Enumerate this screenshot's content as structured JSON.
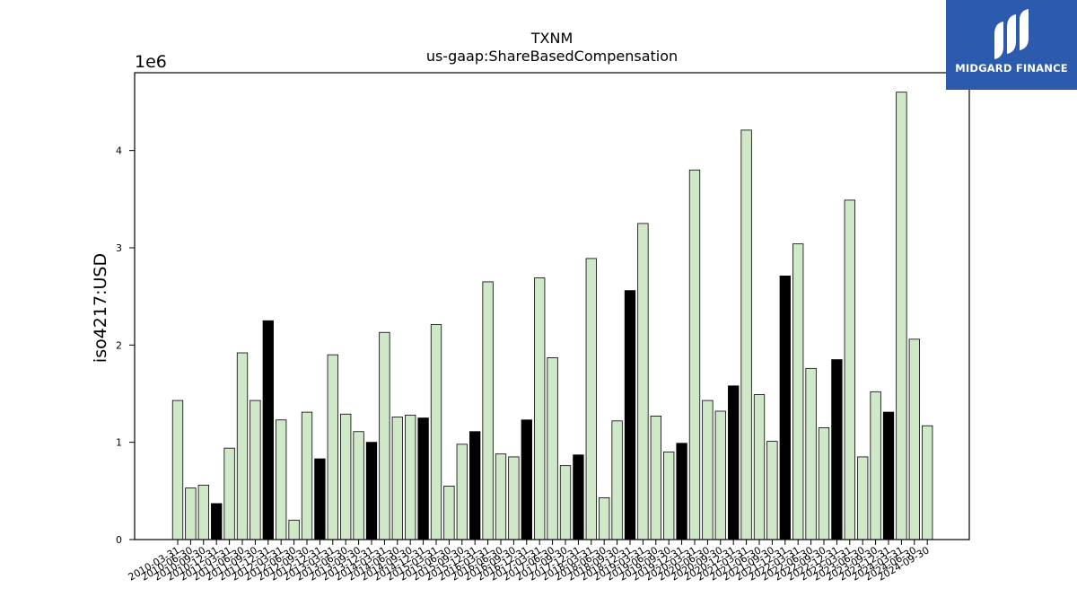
{
  "title": "TXNM",
  "subtitle": "us-gaap:ShareBasedCompensation",
  "ylabel": "iso4217:USD",
  "scale_label": "1e6",
  "logo_text": "MIDGARD FINANCE",
  "colors": {
    "annual": "#000000",
    "quarterly": "#cfe8c8"
  },
  "chart_data": {
    "type": "bar",
    "title": "TXNM",
    "subtitle": "us-gaap:ShareBasedCompensation",
    "xlabel": "",
    "ylabel": "iso4217:USD",
    "ylim": [
      0,
      4800000
    ],
    "yticks": [
      0,
      1000000,
      2000000,
      3000000,
      4000000
    ],
    "ytick_labels": [
      "0",
      "1",
      "2",
      "3",
      "4"
    ],
    "categories": [
      "2010-03-31",
      "2010-06-30",
      "2010-09-30",
      "2010-12-31",
      "2011-03-31",
      "2011-06-30",
      "2011-09-30",
      "2011-12-31",
      "2012-03-31",
      "2012-06-30",
      "2012-09-30",
      "2012-12-31",
      "2013-03-31",
      "2013-06-30",
      "2013-09-30",
      "2013-12-31",
      "2014-03-31",
      "2014-06-30",
      "2014-09-30",
      "2014-12-31",
      "2015-03-31",
      "2015-06-30",
      "2015-09-30",
      "2015-12-31",
      "2016-03-31",
      "2016-06-30",
      "2016-09-30",
      "2016-12-31",
      "2017-03-31",
      "2017-06-30",
      "2017-09-30",
      "2017-12-31",
      "2018-03-31",
      "2018-06-30",
      "2018-09-30",
      "2018-12-31",
      "2019-03-31",
      "2019-06-30",
      "2019-09-30",
      "2019-12-31",
      "2020-03-31",
      "2020-06-30",
      "2020-09-30",
      "2020-12-31",
      "2021-03-31",
      "2021-06-30",
      "2021-09-30",
      "2021-12-31",
      "2022-03-31",
      "2022-06-30",
      "2022-09-30",
      "2022-12-31",
      "2023-03-31",
      "2023-06-30",
      "2023-09-30",
      "2023-12-31",
      "2024-03-31",
      "2024-06-30",
      "2024-09-30"
    ],
    "values": [
      1430000,
      530000,
      560000,
      370000,
      940000,
      1920000,
      1430000,
      2250000,
      1230000,
      200000,
      1310000,
      830000,
      1900000,
      1290000,
      1110000,
      1000000,
      2130000,
      1260000,
      1280000,
      1250000,
      2210000,
      550000,
      980000,
      1110000,
      2650000,
      880000,
      850000,
      1230000,
      2690000,
      1870000,
      760000,
      870000,
      2890000,
      430000,
      1220000,
      2560000,
      3250000,
      1270000,
      900000,
      990000,
      3800000,
      1430000,
      1320000,
      1580000,
      4210000,
      1490000,
      1010000,
      2710000,
      3040000,
      1760000,
      1150000,
      1850000,
      3490000,
      850000,
      1520000,
      1310000,
      4600000,
      2060000,
      1170000
    ],
    "annual_indices": [
      3,
      7,
      11,
      15,
      19,
      23,
      27,
      31,
      35,
      39,
      43,
      47,
      51,
      55
    ],
    "grid": false,
    "legend": "none"
  }
}
